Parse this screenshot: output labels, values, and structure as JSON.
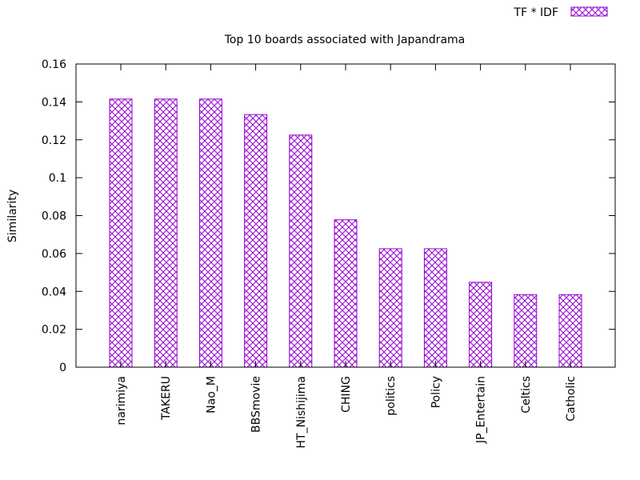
{
  "chart_data": {
    "type": "bar",
    "title": "Top 10 boards associated with Japandrama",
    "xlabel": "",
    "ylabel": "Similarity",
    "ylim": [
      0,
      0.16
    ],
    "yticks": [
      "0",
      "0.02",
      "0.04",
      "0.06",
      "0.08",
      "0.1",
      "0.12",
      "0.14",
      "0.16"
    ],
    "categories": [
      "narimiya",
      "TAKERU",
      "Nao_M",
      "BBSmovie",
      "HT_Nishijima",
      "CHING",
      "politics",
      "Policy",
      "JP_Entertain",
      "Celtics",
      "Catholic"
    ],
    "series": [
      {
        "name": "TF * IDF",
        "color": "#9400d3",
        "pattern": "crosshatch",
        "values": [
          0.1415,
          0.1415,
          0.1415,
          0.1333,
          0.1225,
          0.0778,
          0.0625,
          0.0625,
          0.0448,
          0.0383,
          0.0383
        ]
      }
    ],
    "legend": "top-right",
    "grid": false
  }
}
